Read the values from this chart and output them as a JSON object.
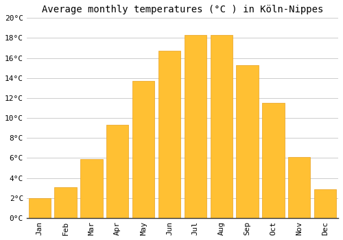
{
  "title": "Average monthly temperatures (°C ) in Köln-Nippes",
  "months": [
    "Jan",
    "Feb",
    "Mar",
    "Apr",
    "May",
    "Jun",
    "Jul",
    "Aug",
    "Sep",
    "Oct",
    "Nov",
    "Dec"
  ],
  "values": [
    2.0,
    3.1,
    5.9,
    9.3,
    13.7,
    16.7,
    18.3,
    18.3,
    15.3,
    11.5,
    6.1,
    2.9
  ],
  "bar_color": "#FFC033",
  "bar_edge_color": "#E8A020",
  "background_color": "#FFFFFF",
  "grid_color": "#CCCCCC",
  "ylim": [
    0,
    20
  ],
  "ytick_step": 2,
  "title_fontsize": 10,
  "tick_fontsize": 8,
  "font_family": "monospace"
}
